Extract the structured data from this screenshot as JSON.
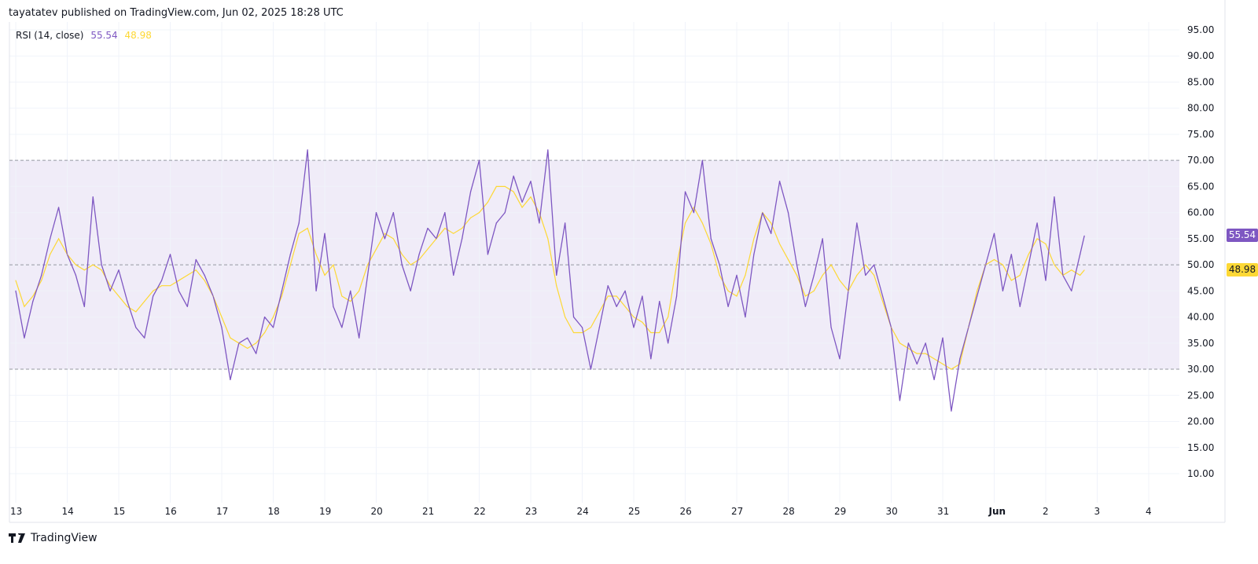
{
  "header": {
    "published": "tayatatev published on TradingView.com, Jun 02, 2025 18:28 UTC"
  },
  "legend": {
    "indicator": "RSI (14, close)",
    "rsi_value": "55.54",
    "ma_value": "48.98"
  },
  "footer": {
    "brand": "TradingView"
  },
  "colors": {
    "rsi": "#7e57c2",
    "ma": "#fdd835",
    "band_fill": "#f0ecf8",
    "band_line": "#9598a1",
    "grid": "#f0f3fa"
  },
  "chart_data": {
    "type": "line",
    "title": "",
    "ylim": [
      5,
      97
    ],
    "y_ticks": [
      "95.00",
      "90.00",
      "85.00",
      "80.00",
      "75.00",
      "70.00",
      "65.00",
      "60.00",
      "55.00",
      "50.00",
      "45.00",
      "40.00",
      "35.00",
      "30.00",
      "25.00",
      "20.00",
      "15.00",
      "10.00"
    ],
    "x_ticks": [
      "13",
      "14",
      "15",
      "16",
      "17",
      "18",
      "19",
      "20",
      "21",
      "22",
      "23",
      "24",
      "25",
      "26",
      "27",
      "28",
      "29",
      "30",
      "31",
      "Jun",
      "2",
      "3",
      "4"
    ],
    "bands": {
      "upper": 70,
      "middle": 50,
      "lower": 30
    },
    "grid": true,
    "last_values": {
      "rsi": "55.54",
      "ma": "48.98"
    },
    "sample_hours": [
      0,
      4,
      8,
      12,
      16,
      20
    ],
    "days": [
      {
        "day": "May 13",
        "rsi": [
          45,
          36,
          43,
          48,
          55,
          61
        ],
        "ma": [
          47,
          42,
          44,
          47,
          52,
          55
        ]
      },
      {
        "day": "May 14",
        "rsi": [
          52,
          48,
          42,
          63,
          50,
          45
        ],
        "ma": [
          52,
          50,
          49,
          50,
          49,
          46
        ]
      },
      {
        "day": "May 15",
        "rsi": [
          49,
          43,
          38,
          36,
          44,
          47
        ],
        "ma": [
          44,
          42,
          41,
          43,
          45,
          46
        ]
      },
      {
        "day": "May 16",
        "rsi": [
          52,
          45,
          42,
          51,
          48,
          44
        ],
        "ma": [
          46,
          47,
          48,
          49,
          47,
          44
        ]
      },
      {
        "day": "May 17",
        "rsi": [
          38,
          28,
          35,
          36,
          33,
          40
        ],
        "ma": [
          40,
          36,
          35,
          34,
          35,
          37
        ]
      },
      {
        "day": "May 18",
        "rsi": [
          38,
          45,
          52,
          58,
          72,
          45
        ],
        "ma": [
          40,
          44,
          50,
          56,
          57,
          52
        ]
      },
      {
        "day": "May 19",
        "rsi": [
          56,
          42,
          38,
          45,
          36,
          48
        ],
        "ma": [
          48,
          50,
          44,
          43,
          45,
          50
        ]
      },
      {
        "day": "May 20",
        "rsi": [
          60,
          55,
          60,
          50,
          45,
          52
        ],
        "ma": [
          53,
          56,
          55,
          52,
          50,
          51
        ]
      },
      {
        "day": "May 21",
        "rsi": [
          57,
          55,
          60,
          48,
          55,
          64
        ],
        "ma": [
          53,
          55,
          57,
          56,
          57,
          59
        ]
      },
      {
        "day": "May 22",
        "rsi": [
          70,
          52,
          58,
          60,
          67,
          62
        ],
        "ma": [
          60,
          62,
          65,
          65,
          64,
          61
        ]
      },
      {
        "day": "May 23",
        "rsi": [
          66,
          58,
          72,
          48,
          58,
          40
        ],
        "ma": [
          63,
          60,
          55,
          46,
          40,
          37
        ]
      },
      {
        "day": "May 24",
        "rsi": [
          38,
          30,
          38,
          46,
          42,
          45
        ],
        "ma": [
          37,
          38,
          41,
          44,
          44,
          42
        ]
      },
      {
        "day": "May 25",
        "rsi": [
          38,
          44,
          32,
          43,
          35,
          44
        ],
        "ma": [
          40,
          39,
          37,
          37,
          40,
          50
        ]
      },
      {
        "day": "May 26",
        "rsi": [
          64,
          60,
          70,
          55,
          50,
          42
        ],
        "ma": [
          58,
          61,
          58,
          54,
          48,
          45
        ]
      },
      {
        "day": "May 27",
        "rsi": [
          48,
          40,
          52,
          60,
          56,
          66
        ],
        "ma": [
          44,
          48,
          55,
          60,
          58,
          54
        ]
      },
      {
        "day": "May 28",
        "rsi": [
          60,
          50,
          42,
          48,
          55,
          38
        ],
        "ma": [
          51,
          48,
          44,
          45,
          48,
          50
        ]
      },
      {
        "day": "May 29",
        "rsi": [
          32,
          45,
          58,
          48,
          50,
          44
        ],
        "ma": [
          47,
          45,
          48,
          50,
          48,
          43
        ]
      },
      {
        "day": "May 30",
        "rsi": [
          38,
          24,
          35,
          31,
          35,
          28
        ],
        "ma": [
          38,
          35,
          34,
          33,
          33,
          32
        ]
      },
      {
        "day": "May 31",
        "rsi": [
          36,
          22,
          32,
          38,
          44,
          50
        ],
        "ma": [
          31,
          30,
          31,
          38,
          45,
          50
        ]
      },
      {
        "day": "Jun 1",
        "rsi": [
          56,
          45,
          52,
          42,
          50,
          58
        ],
        "ma": [
          51,
          50,
          47,
          48,
          52,
          55
        ]
      },
      {
        "day": "Jun 2",
        "hours": [
          0,
          4,
          8,
          12,
          16,
          18
        ],
        "rsi": [
          47,
          63,
          48,
          45,
          52,
          55.54
        ],
        "ma": [
          54,
          50,
          48,
          49,
          48,
          48.98
        ]
      }
    ]
  }
}
